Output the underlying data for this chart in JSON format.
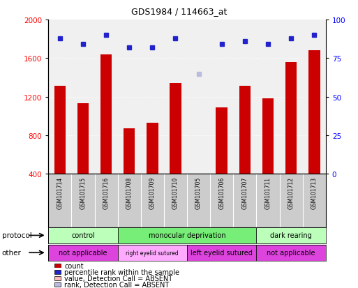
{
  "title": "GDS1984 / 114663_at",
  "samples": [
    "GSM101714",
    "GSM101715",
    "GSM101716",
    "GSM101708",
    "GSM101709",
    "GSM101710",
    "GSM101705",
    "GSM101706",
    "GSM101707",
    "GSM101711",
    "GSM101712",
    "GSM101713"
  ],
  "counts": [
    1310,
    1130,
    1640,
    870,
    930,
    1340,
    null,
    1090,
    1310,
    1180,
    1560,
    1680
  ],
  "percentile_ranks": [
    88,
    84,
    90,
    82,
    82,
    88,
    null,
    84,
    86,
    84,
    88,
    90
  ],
  "absent_value_idx": 6,
  "absent_value": 400,
  "absent_rank_val": 65,
  "ylim_left": [
    400,
    2000
  ],
  "ylim_right": [
    0,
    100
  ],
  "yticks_left": [
    400,
    800,
    1200,
    1600,
    2000
  ],
  "yticks_right": [
    0,
    25,
    50,
    75,
    100
  ],
  "bar_color": "#cc0000",
  "dot_color": "#2222cc",
  "absent_bar_color": "#ffbbbb",
  "absent_dot_color": "#bbbbdd",
  "plot_bg_color": "#f0f0f0",
  "label_bg_color": "#cccccc",
  "protocol_groups": [
    {
      "label": "control",
      "start": 0,
      "end": 3,
      "color": "#bbffbb"
    },
    {
      "label": "monocular deprivation",
      "start": 3,
      "end": 9,
      "color": "#77ee77"
    },
    {
      "label": "dark rearing",
      "start": 9,
      "end": 12,
      "color": "#bbffbb"
    }
  ],
  "other_groups": [
    {
      "label": "not applicable",
      "start": 0,
      "end": 3,
      "color": "#dd44dd"
    },
    {
      "label": "right eyelid sutured",
      "start": 3,
      "end": 6,
      "color": "#ffaaff"
    },
    {
      "label": "left eyelid sutured",
      "start": 6,
      "end": 9,
      "color": "#dd44dd"
    },
    {
      "label": "not applicable",
      "start": 9,
      "end": 12,
      "color": "#dd44dd"
    }
  ],
  "legend_items": [
    {
      "label": "count",
      "color": "#cc0000"
    },
    {
      "label": "percentile rank within the sample",
      "color": "#2222cc"
    },
    {
      "label": "value, Detection Call = ABSENT",
      "color": "#ffbbbb"
    },
    {
      "label": "rank, Detection Call = ABSENT",
      "color": "#bbbbdd"
    }
  ]
}
